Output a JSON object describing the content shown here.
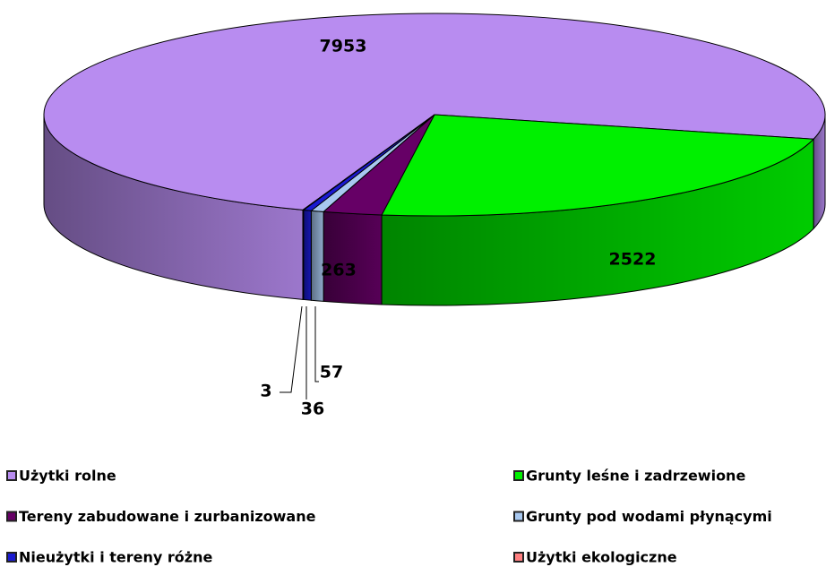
{
  "chart_data": {
    "type": "pie3d",
    "categories": [
      "Użytki rolne",
      "Grunty leśne i zadrzewione",
      "Tereny zabudowane i zurbanizowane",
      "Grunty pod wodami płynącymi",
      "Nieużytki i tereny różne",
      "Użytki ekologiczne"
    ],
    "values": [
      7953,
      2522,
      263,
      57,
      36,
      3
    ],
    "colors": [
      "#b88cf0",
      "#00f000",
      "#660066",
      "#a8c8f0",
      "#1a1ad0",
      "#ff7f80"
    ],
    "legend": "bottom"
  }
}
